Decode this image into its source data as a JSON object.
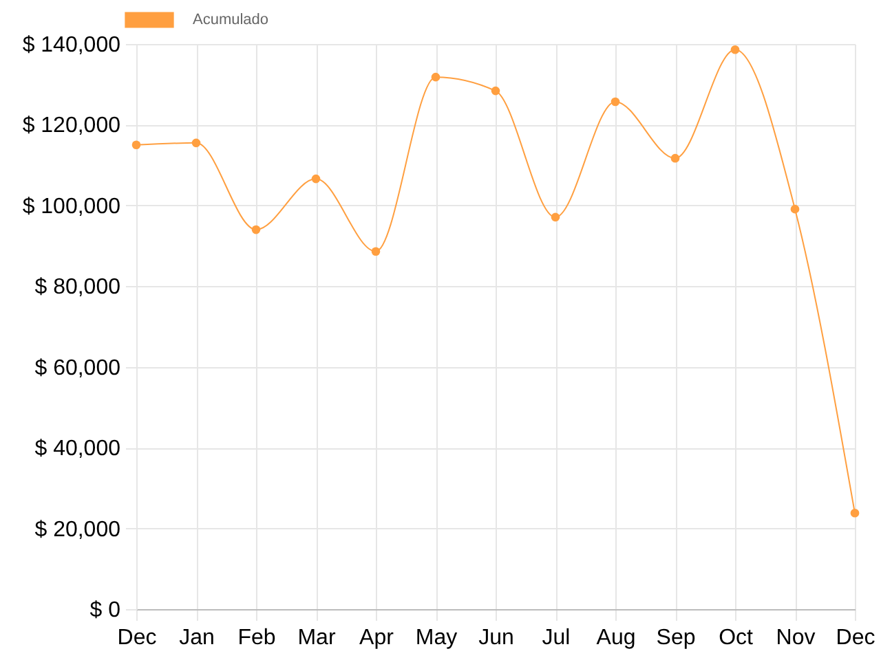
{
  "chart_data": {
    "type": "line",
    "categories": [
      "Dec",
      "Jan",
      "Feb",
      "Mar",
      "Apr",
      "May",
      "Jun",
      "Jul",
      "Aug",
      "Sep",
      "Oct",
      "Nov",
      "Dec"
    ],
    "series": [
      {
        "name": "Acumulado",
        "color": "#ff9f40",
        "values": [
          115000,
          115500,
          94000,
          106600,
          88600,
          131800,
          128400,
          97100,
          125700,
          111700,
          138600,
          99100,
          23800
        ]
      }
    ],
    "ylim": [
      0,
      140000
    ],
    "yticks": [
      {
        "value": 0,
        "label": "$ 0"
      },
      {
        "value": 20000,
        "label": "$ 20,000"
      },
      {
        "value": 40000,
        "label": "$ 40,000"
      },
      {
        "value": 60000,
        "label": "$ 60,000"
      },
      {
        "value": 80000,
        "label": "$ 80,000"
      },
      {
        "value": 100000,
        "label": "$ 100,000"
      },
      {
        "value": 120000,
        "label": "$ 120,000"
      },
      {
        "value": 140000,
        "label": "$ 140,000"
      }
    ],
    "grid": true,
    "legend": "top",
    "marker": "circle",
    "line_style": "solid"
  }
}
